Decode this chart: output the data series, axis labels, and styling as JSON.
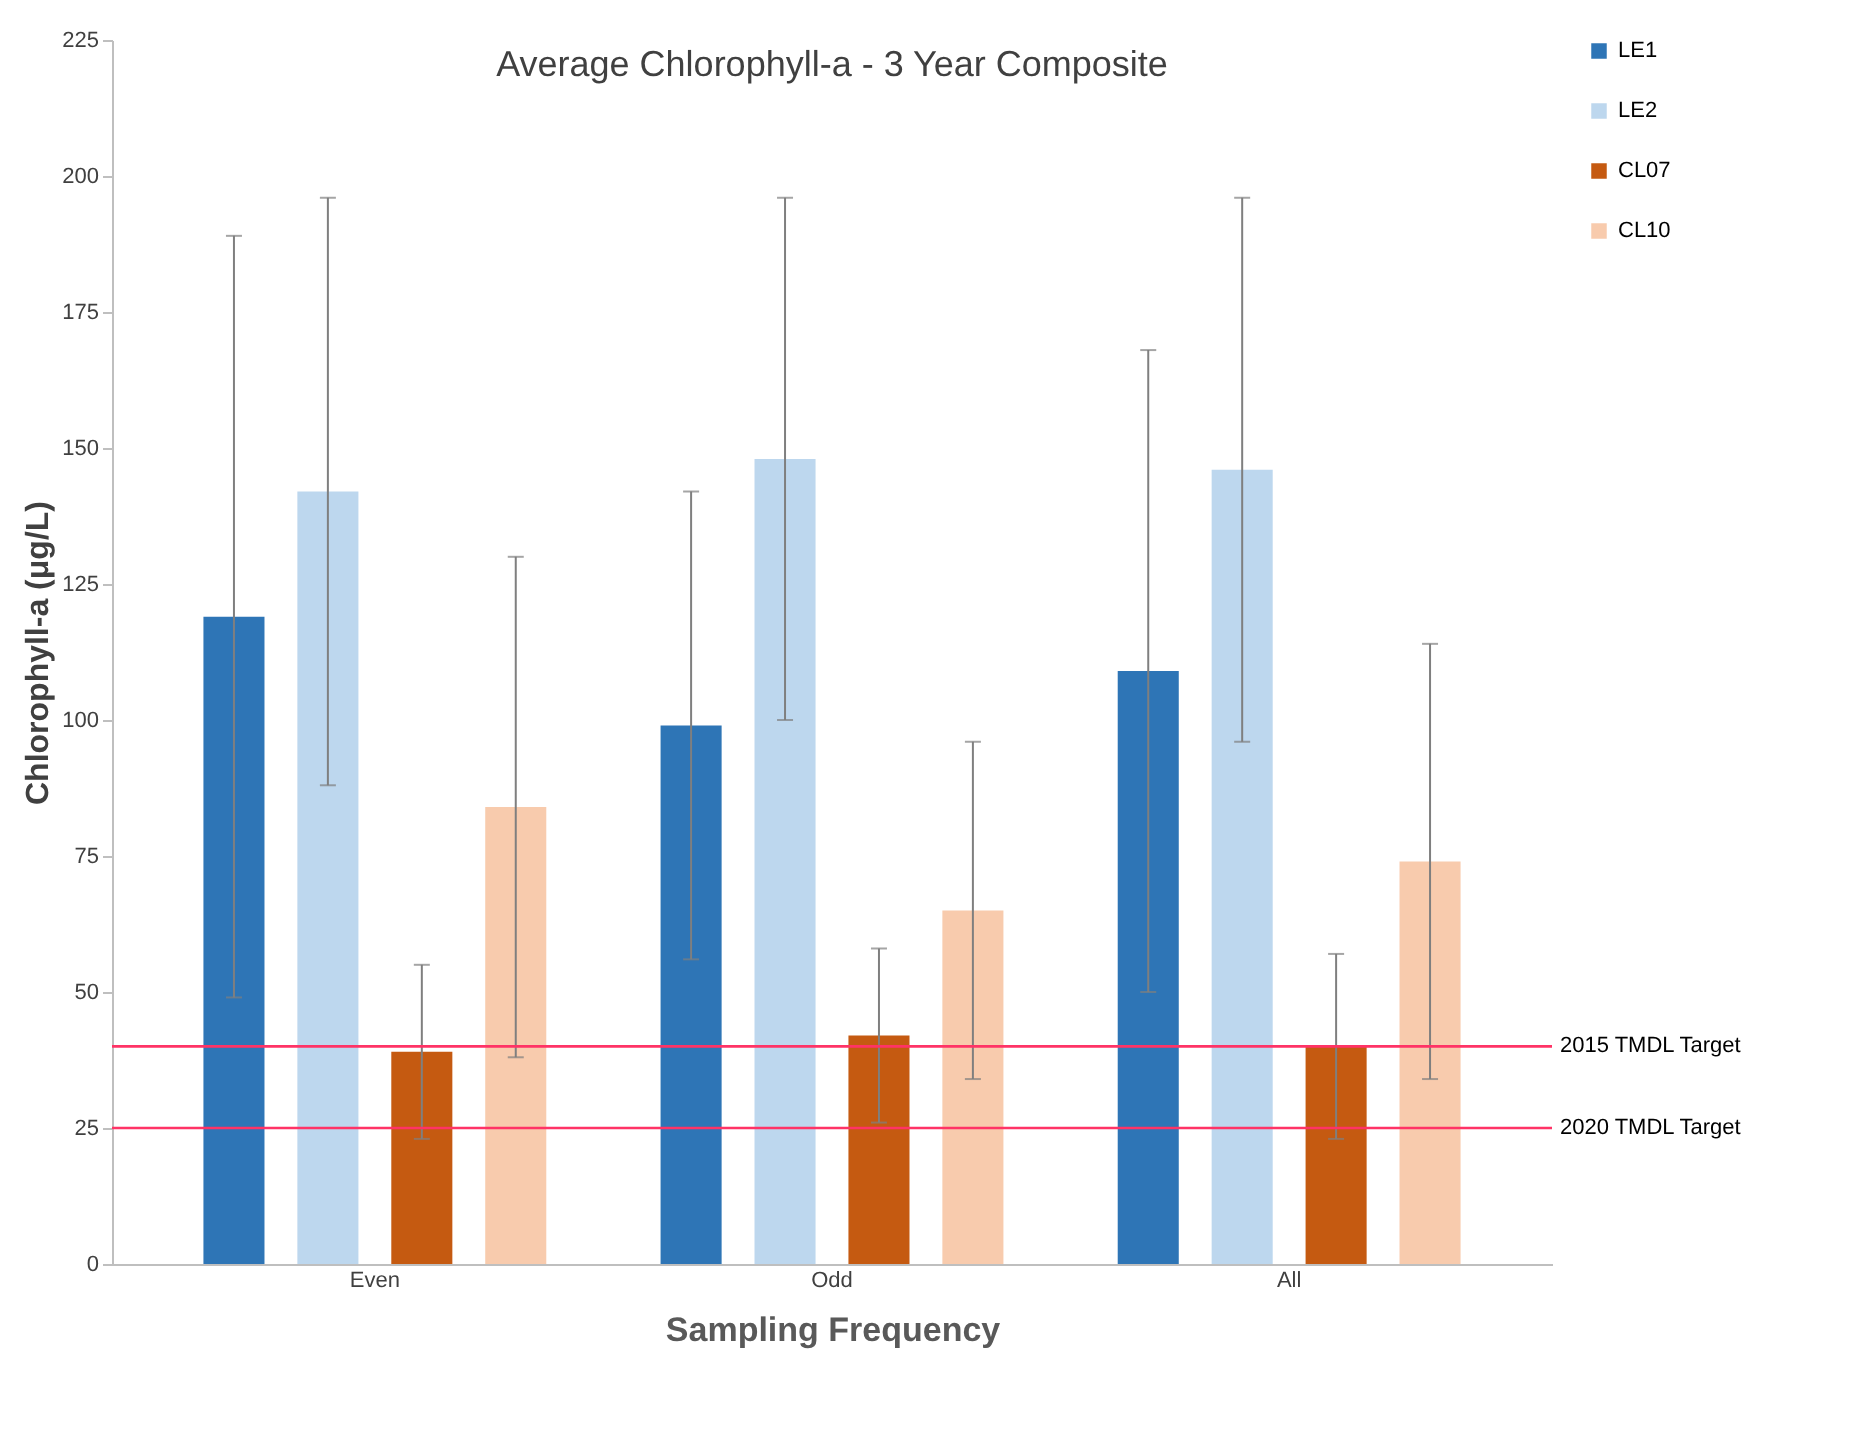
{
  "chart_data": {
    "type": "bar",
    "title": "Average Chlorophyll-a - 3 Year Composite",
    "xlabel": "Sampling Frequency",
    "ylabel": "Chlorophyll-a (μg/L)",
    "categories": [
      "Even",
      "Odd",
      "All"
    ],
    "series": [
      {
        "name": "LE1",
        "color": "#2e75b6",
        "values": [
          119,
          99,
          109
        ],
        "errors": [
          70,
          43,
          59
        ]
      },
      {
        "name": "LE2",
        "color": "#bdd7ee",
        "values": [
          142,
          148,
          146
        ],
        "errors": [
          54,
          48,
          50
        ]
      },
      {
        "name": "CL07",
        "color": "#c55a11",
        "values": [
          39,
          42,
          40
        ],
        "errors": [
          16,
          16,
          17
        ]
      },
      {
        "name": "CL10",
        "color": "#f8cbad",
        "values": [
          84,
          65,
          74
        ],
        "errors": [
          46,
          31,
          40
        ]
      }
    ],
    "ylim": [
      0,
      225
    ],
    "yticks": [
      0,
      25,
      50,
      75,
      100,
      125,
      150,
      175,
      200,
      225
    ],
    "ref_lines": [
      {
        "axis": "y",
        "value": 40,
        "label": "2015 TMDL Target",
        "color": "#ff3366"
      },
      {
        "axis": "y",
        "value": 25,
        "label": "2020 TMDL Target",
        "color": "#ff3366"
      }
    ],
    "legend": "right",
    "grid": false
  }
}
